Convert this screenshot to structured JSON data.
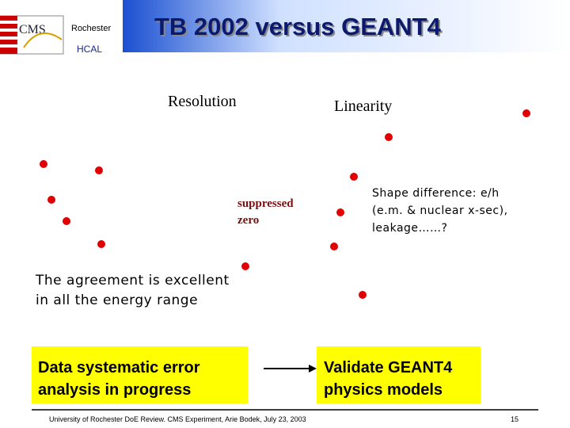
{
  "header": {
    "institution": "Rochester",
    "group": "HCAL",
    "title": "TB 2002 versus GEANT4"
  },
  "labels": {
    "resolution": "Resolution",
    "linearity": "Linearity",
    "suppressed": [
      "suppressed",
      "zero"
    ]
  },
  "notes": {
    "shape": [
      "Shape difference: e/h",
      "(e.m. & nuclear x-sec),",
      "leakage……?"
    ],
    "agreement": [
      "The agreement is excellent",
      "in all the energy range"
    ]
  },
  "boxes": [
    {
      "lines": [
        "Data systematic error",
        "analysis in progress"
      ]
    },
    {
      "lines": [
        "Validate GEANT4",
        "physics models"
      ]
    }
  ],
  "footer": {
    "text": "University of Rochester DoE Review. CMS Experiment, Arie Bodek, July 23, 2003",
    "page": "15"
  }
}
